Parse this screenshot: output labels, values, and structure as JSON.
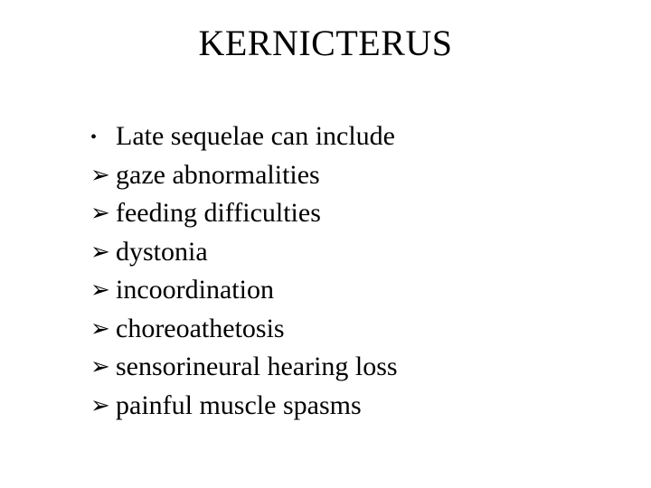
{
  "slide": {
    "title": "KERNICTERUS",
    "title_fontsize": 40,
    "body_fontsize": 30,
    "background_color": "#ffffff",
    "text_color": "#000000",
    "items": [
      {
        "bullet": "dot",
        "text": "Late sequelae can include"
      },
      {
        "bullet": "arrow",
        "text": "gaze abnormalities"
      },
      {
        "bullet": "arrow",
        "text": "feeding difficulties"
      },
      {
        "bullet": "arrow",
        "text": "dystonia"
      },
      {
        "bullet": "arrow",
        "text": "incoordination"
      },
      {
        "bullet": "arrow",
        "text": "choreoathetosis"
      },
      {
        "bullet": "arrow",
        "text": "sensorineural hearing loss"
      },
      {
        "bullet": "arrow",
        "text": "painful muscle spasms"
      }
    ],
    "bullets": {
      "dot": "•",
      "arrow": "➢"
    }
  }
}
